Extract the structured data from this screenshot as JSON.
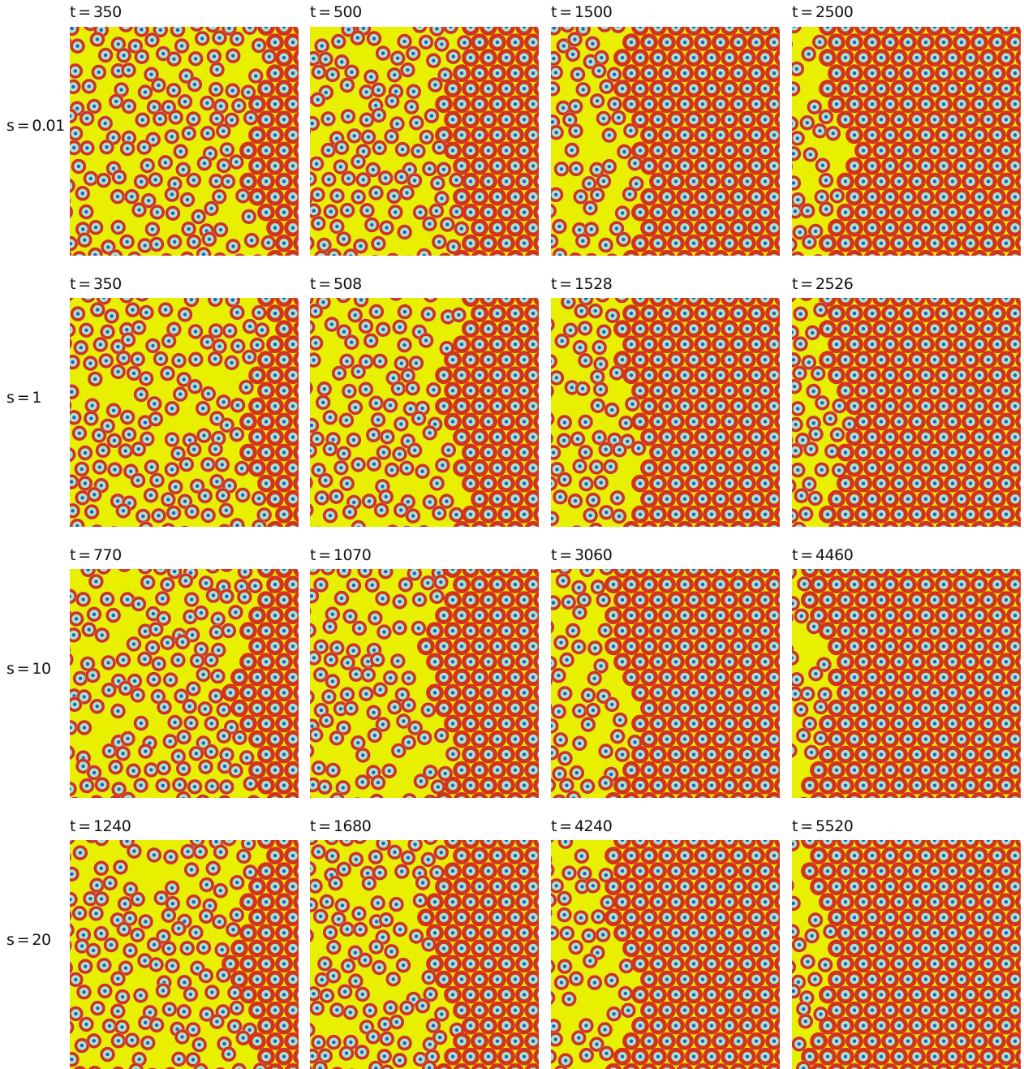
{
  "rows": [
    {
      "label": "s = 0.01",
      "times": [
        "t = 350",
        "t = 500",
        "t = 1500",
        "t = 2500"
      ]
    },
    {
      "label": "s = 1",
      "times": [
        "t = 350",
        "t = 508",
        "t = 1528",
        "t = 2526"
      ]
    },
    {
      "label": "s = 10",
      "times": [
        "t = 770",
        "t = 1070",
        "t = 3060",
        "t = 4460"
      ]
    },
    {
      "label": "s = 20",
      "times": [
        "t = 1240",
        "t = 1680",
        "t = 4240",
        "t = 5520"
      ]
    }
  ],
  "colors": {
    "background_field": "#e8f000",
    "ring": "#d2321e",
    "halo": "#a8e6c8",
    "core": "#2a56d8"
  }
}
